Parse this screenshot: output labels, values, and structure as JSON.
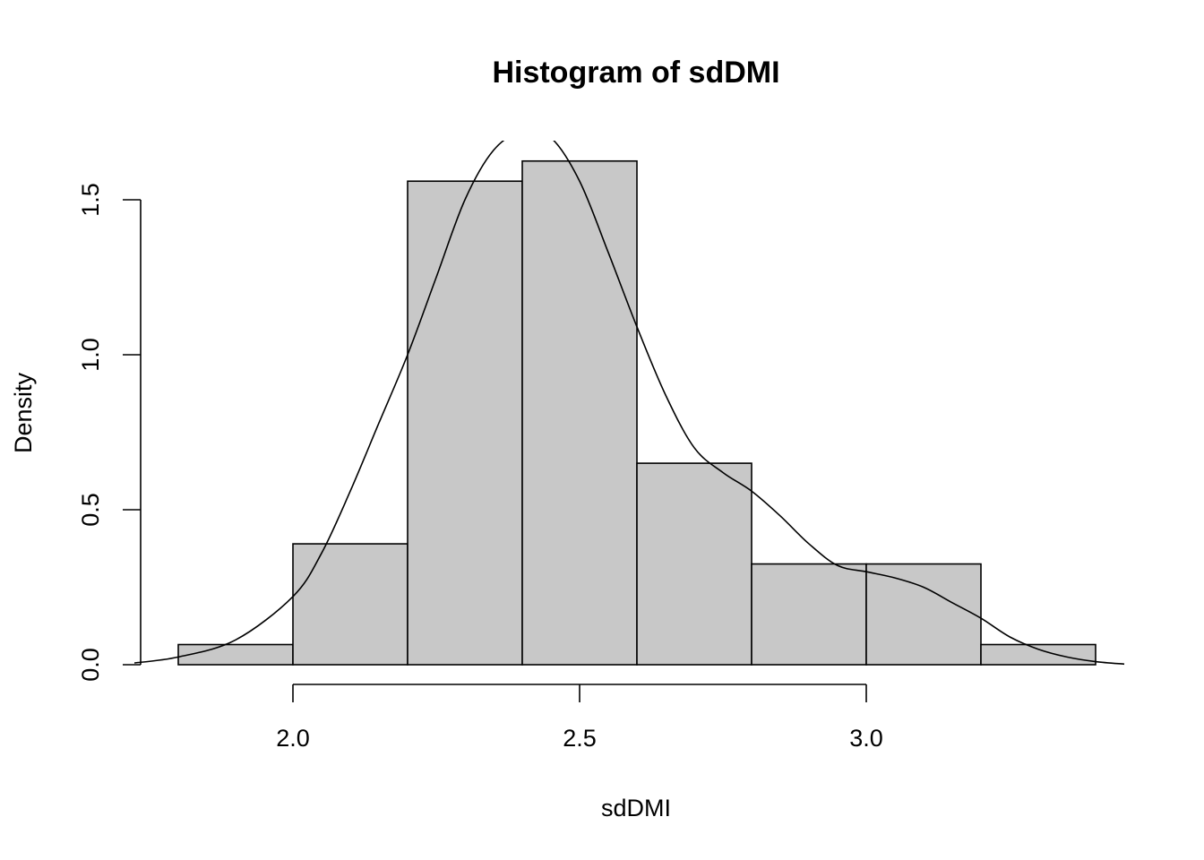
{
  "chart_data": {
    "type": "bar",
    "title": "Histogram of sdDMI",
    "xlabel": "sdDMI",
    "ylabel": "Density",
    "bins": [
      {
        "x0": 1.8,
        "x1": 2.0,
        "density": 0.065
      },
      {
        "x0": 2.0,
        "x1": 2.2,
        "density": 0.39
      },
      {
        "x0": 2.2,
        "x1": 2.4,
        "density": 1.56
      },
      {
        "x0": 2.4,
        "x1": 2.6,
        "density": 1.625
      },
      {
        "x0": 2.6,
        "x1": 2.8,
        "density": 0.65
      },
      {
        "x0": 2.8,
        "x1": 3.0,
        "density": 0.325
      },
      {
        "x0": 3.0,
        "x1": 3.2,
        "density": 0.325
      },
      {
        "x0": 3.2,
        "x1": 3.4,
        "density": 0.065
      }
    ],
    "density_curve": {
      "x": [
        1.72,
        1.8,
        1.9,
        2.0,
        2.05,
        2.1,
        2.15,
        2.2,
        2.25,
        2.3,
        2.35,
        2.4,
        2.45,
        2.5,
        2.55,
        2.6,
        2.65,
        2.7,
        2.75,
        2.8,
        2.85,
        2.9,
        2.95,
        3.0,
        3.05,
        3.1,
        3.15,
        3.2,
        3.25,
        3.3,
        3.35,
        3.4,
        3.45
      ],
      "y": [
        0.005,
        0.025,
        0.08,
        0.22,
        0.36,
        0.56,
        0.78,
        1.0,
        1.25,
        1.5,
        1.66,
        1.72,
        1.7,
        1.56,
        1.33,
        1.09,
        0.87,
        0.7,
        0.62,
        0.56,
        0.48,
        0.39,
        0.32,
        0.3,
        0.28,
        0.25,
        0.2,
        0.15,
        0.09,
        0.05,
        0.025,
        0.01,
        0.002
      ]
    },
    "xlim": [
      1.72,
      3.45
    ],
    "ylim": [
      0,
      1.7
    ],
    "x_ticks": [
      "2.0",
      "2.5",
      "3.0"
    ],
    "y_ticks": [
      "0.0",
      "0.5",
      "1.0",
      "1.5"
    ],
    "grid": false,
    "bar_fill": "#c8c8c8",
    "stroke_color": "#000000"
  }
}
